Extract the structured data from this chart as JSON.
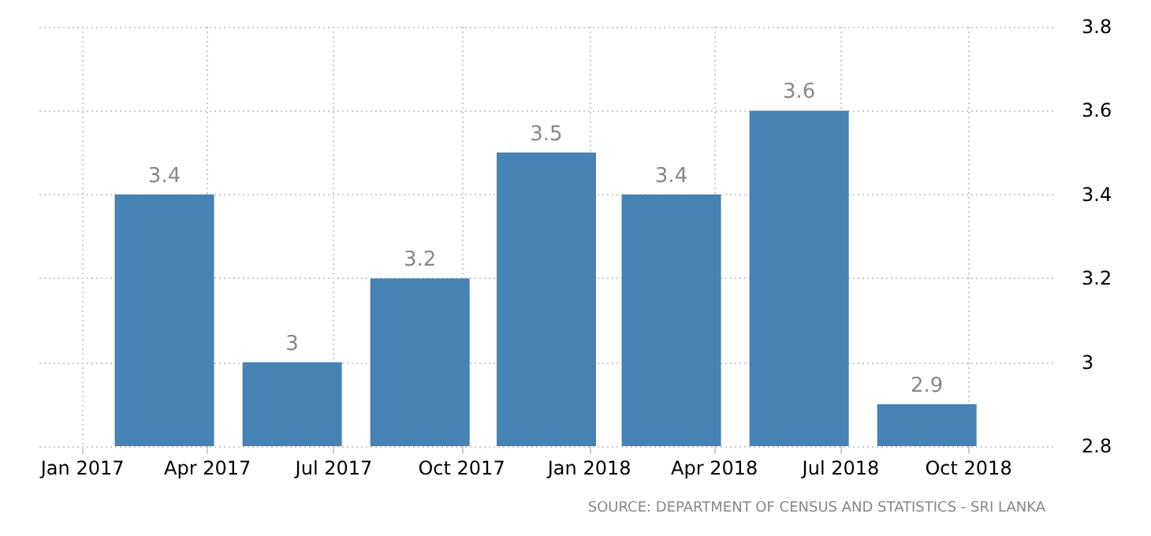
{
  "chart_data": {
    "type": "bar",
    "x": [
      "2017-03",
      "2017-06",
      "2017-09",
      "2017-12",
      "2018-03",
      "2018-06",
      "2018-09"
    ],
    "values": [
      3.4,
      3,
      3.2,
      3.5,
      3.4,
      3.6,
      2.9
    ],
    "color": "#4682b4",
    "data_labels": true,
    "xlim": [
      "2016-12",
      "2018-12"
    ],
    "xticks": [
      {
        "value": "2017-01",
        "label": "Jan 2017"
      },
      {
        "value": "2017-04",
        "label": "Apr 2017"
      },
      {
        "value": "2017-07",
        "label": "Jul 2017"
      },
      {
        "value": "2017-10",
        "label": "Oct 2017"
      },
      {
        "value": "2018-01",
        "label": "Jan 2018"
      },
      {
        "value": "2018-04",
        "label": "Apr 2018"
      },
      {
        "value": "2018-07",
        "label": "Jul 2018"
      },
      {
        "value": "2018-10",
        "label": "Oct 2018"
      }
    ],
    "ylim": [
      2.8,
      3.8
    ],
    "yticks": [
      2.8,
      3,
      3.2,
      3.4,
      3.6,
      3.8
    ],
    "grid": true,
    "annotations": [
      "SOURCE: DEPARTMENT OF CENSUS AND STATISTICS - SRI LANKA"
    ]
  }
}
